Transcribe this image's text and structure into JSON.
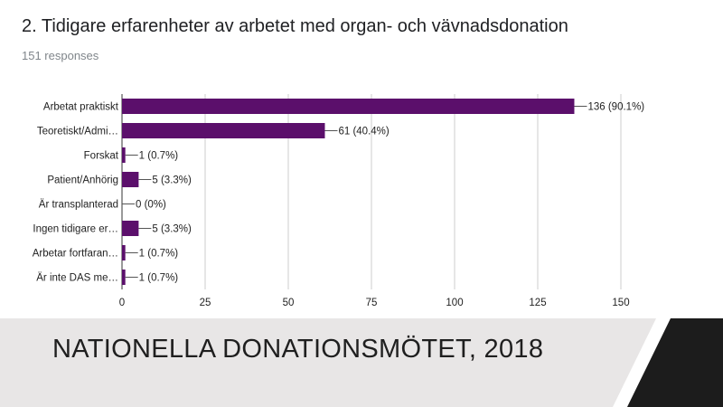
{
  "question": {
    "title": "2. Tidigare erfarenheter av arbetet med organ- och vävnadsdonation",
    "responses": "151 responses"
  },
  "footer": {
    "text": "NATIONELLA DONATIONSMÖTET, 2018"
  },
  "colors": {
    "bar": "#5b0f6b",
    "grid": "#cccccc",
    "footer_band": "#e8e6e6",
    "footer_corner": "#1c1c1c"
  },
  "chart_data": {
    "type": "bar",
    "orientation": "horizontal",
    "categories": [
      "Arbetat praktiskt",
      "Teoretiskt/Admi…",
      "Forskat",
      "Patient/Anhörig",
      "Är transplanterad",
      "Ingen tidigare er…",
      "Arbetar fortfaran…",
      "Är inte DAS me…"
    ],
    "values": [
      136,
      61,
      1,
      5,
      0,
      5,
      1,
      1
    ],
    "data_labels": [
      "136 (90.1%)",
      "61 (40.4%)",
      "1 (0.7%)",
      "5 (3.3%)",
      "0 (0%)",
      "5 (3.3%)",
      "1 (0.7%)",
      "1 (0.7%)"
    ],
    "xticks": [
      0,
      25,
      50,
      75,
      100,
      125,
      150
    ],
    "xlim": [
      0,
      150
    ],
    "grid": true,
    "title": "",
    "xlabel": "",
    "ylabel": ""
  }
}
